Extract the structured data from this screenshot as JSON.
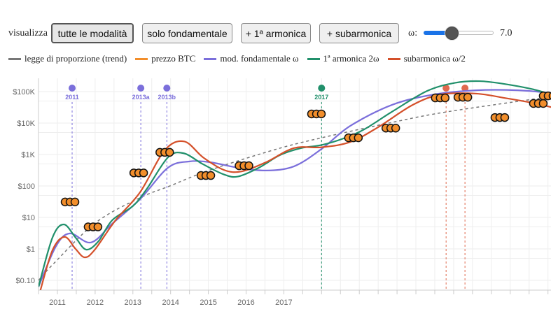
{
  "controls": {
    "label": "visualizza",
    "buttons": [
      {
        "label": "tutte le modalità",
        "active": true
      },
      {
        "label": "solo fondamentale",
        "active": false
      },
      {
        "label": "+ 1ª armonica",
        "active": false
      },
      {
        "label": "+ subarmonica",
        "active": false
      }
    ],
    "omega_label": "ω:",
    "omega_value": "7.0",
    "omega_slider_fraction": 0.4,
    "slider_color": "#1a73e8"
  },
  "chart_data": {
    "type": "line",
    "y_scale": "log",
    "ylim": [
      0.05,
      200000
    ],
    "xlim": [
      2010.5,
      2024.1
    ],
    "grid": true,
    "legend_position": "top",
    "y_ticks": [
      {
        "value": 100000,
        "label": "$100K"
      },
      {
        "value": 10000,
        "label": "$10K"
      },
      {
        "value": 1000,
        "label": "$1K"
      },
      {
        "value": 100,
        "label": "$100"
      },
      {
        "value": 10,
        "label": "$10"
      },
      {
        "value": 1,
        "label": "$1"
      },
      {
        "value": 0.1,
        "label": "$0.10"
      }
    ],
    "x_ticks": [
      {
        "value": 2011,
        "label": "2011"
      },
      {
        "value": 2012,
        "label": "2012"
      },
      {
        "value": 2013,
        "label": "2013"
      },
      {
        "value": 2014,
        "label": "2014"
      },
      {
        "value": 2015,
        "label": "2015"
      },
      {
        "value": 2016,
        "label": "2016"
      },
      {
        "value": 2017,
        "label": "2017"
      }
    ],
    "series": [
      {
        "name": "legge di proporzione (trend)",
        "color": "#777777",
        "style": "dashed",
        "points": [
          [
            2010.5,
            0.1
          ],
          [
            2010.9,
            0.34
          ],
          [
            2012.02,
            6.9
          ],
          [
            2013.19,
            42
          ],
          [
            2013.98,
            100
          ],
          [
            2015.04,
            320
          ],
          [
            2016.78,
            1450
          ],
          [
            2018.0,
            3400
          ],
          [
            2019.87,
            10500
          ],
          [
            2021.35,
            23000
          ],
          [
            2024.08,
            69000
          ]
        ]
      },
      {
        "name": "prezzo BTC",
        "color": "#f28e2b",
        "style": "markers",
        "points": [
          [
            2011.39,
            31
          ],
          [
            2012.0,
            5
          ],
          [
            2013.21,
            260
          ],
          [
            2013.9,
            1170
          ],
          [
            2014.99,
            215
          ],
          [
            2016.0,
            440
          ],
          [
            2017.92,
            19500
          ],
          [
            2018.9,
            3400
          ],
          [
            2019.89,
            6900
          ],
          [
            2021.2,
            63000
          ],
          [
            2021.8,
            66000
          ],
          [
            2022.78,
            15000
          ],
          [
            2023.8,
            42000
          ],
          [
            2024.06,
            73000
          ]
        ]
      },
      {
        "name": "mod. fondamentale ω",
        "color": "#7b6fdb",
        "style": "solid",
        "points": [
          [
            2010.5,
            0.063
          ],
          [
            2010.96,
            1.2
          ],
          [
            2011.33,
            3.1
          ],
          [
            2011.89,
            1.6
          ],
          [
            2012.45,
            6.3
          ],
          [
            2013.19,
            38
          ],
          [
            2013.93,
            380
          ],
          [
            2014.49,
            600
          ],
          [
            2015.04,
            570
          ],
          [
            2015.79,
            380
          ],
          [
            2016.53,
            310
          ],
          [
            2017.27,
            420
          ],
          [
            2018.0,
            1500
          ],
          [
            2018.76,
            8100
          ],
          [
            2019.87,
            38000
          ],
          [
            2020.98,
            81000
          ],
          [
            2022.1,
            110000
          ],
          [
            2023.2,
            110000
          ],
          [
            2024.08,
            90000
          ]
        ]
      },
      {
        "name": "1ª armonica 2ω",
        "color": "#21906b",
        "style": "solid",
        "points": [
          [
            2010.5,
            0.063
          ],
          [
            2010.87,
            2.3
          ],
          [
            2011.17,
            6.0
          ],
          [
            2011.48,
            2.3
          ],
          [
            2011.76,
            0.95
          ],
          [
            2012.08,
            1.7
          ],
          [
            2012.45,
            8.1
          ],
          [
            2013.0,
            23
          ],
          [
            2013.37,
            81
          ],
          [
            2013.93,
            810
          ],
          [
            2014.34,
            1100
          ],
          [
            2014.86,
            490
          ],
          [
            2015.42,
            230
          ],
          [
            2015.79,
            200
          ],
          [
            2016.34,
            380
          ],
          [
            2016.9,
            960
          ],
          [
            2017.46,
            1600
          ],
          [
            2018.0,
            2000
          ],
          [
            2018.57,
            3200
          ],
          [
            2019.13,
            6300
          ],
          [
            2019.87,
            23000
          ],
          [
            2020.8,
            105000
          ],
          [
            2021.54,
            190000
          ],
          [
            2022.19,
            215000
          ],
          [
            2022.84,
            175000
          ],
          [
            2023.58,
            120000
          ],
          [
            2024.08,
            81000
          ]
        ]
      },
      {
        "name": "subarmonica ω/2",
        "color": "#d4502a",
        "style": "solid",
        "points": [
          [
            2010.55,
            0.049
          ],
          [
            2010.87,
            0.91
          ],
          [
            2011.19,
            2.4
          ],
          [
            2011.48,
            1.0
          ],
          [
            2011.72,
            0.54
          ],
          [
            2011.98,
            0.91
          ],
          [
            2012.54,
            8.1
          ],
          [
            2013.19,
            63
          ],
          [
            2013.84,
            1350
          ],
          [
            2014.36,
            2600
          ],
          [
            2014.86,
            810
          ],
          [
            2015.42,
            320
          ],
          [
            2015.88,
            290
          ],
          [
            2016.53,
            570
          ],
          [
            2017.27,
            1600
          ],
          [
            2018.0,
            1700
          ],
          [
            2018.76,
            2500
          ],
          [
            2019.5,
            7400
          ],
          [
            2020.42,
            38000
          ],
          [
            2021.17,
            81000
          ],
          [
            2022.1,
            86000
          ],
          [
            2022.84,
            63000
          ],
          [
            2023.58,
            44000
          ],
          [
            2024.08,
            32000
          ]
        ]
      }
    ],
    "events": [
      {
        "x": 2011.39,
        "label": "2011",
        "color": "#7b6fdb"
      },
      {
        "x": 2013.21,
        "label": "2013a",
        "color": "#7b6fdb"
      },
      {
        "x": 2013.9,
        "label": "2013b",
        "color": "#7b6fdb"
      },
      {
        "x": 2018.0,
        "label": "2017",
        "color": "#21906b"
      },
      {
        "x": 2021.3,
        "label": "",
        "color": "#e06a4f"
      },
      {
        "x": 2021.8,
        "label": "",
        "color": "#e06a4f"
      }
    ]
  }
}
